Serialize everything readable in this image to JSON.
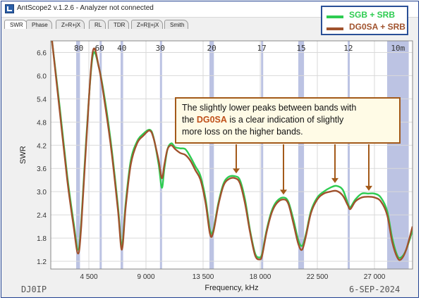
{
  "window": {
    "title": "AntScope2 v.1.2.6 - Analyzer not connected",
    "icon": "antscope-app-icon"
  },
  "tabs": [
    {
      "label": "SWR",
      "active": true
    },
    {
      "label": "Phase",
      "active": false
    },
    {
      "label": "Z=R+jX",
      "active": false
    },
    {
      "label": "RL",
      "active": false
    },
    {
      "label": "TDR",
      "active": false
    },
    {
      "label": "Z=R||+jX",
      "active": false
    },
    {
      "label": "Smith",
      "active": false
    }
  ],
  "legend": {
    "items": [
      {
        "label": "SGB + SRB",
        "color": "#2ecc51"
      },
      {
        "label": "DG0SA + SRB",
        "color": "#a0522d"
      }
    ]
  },
  "annotation": {
    "line1": "The slightly lower peaks between bands with",
    "line2_pre": "the ",
    "callsign": "DG0SA",
    "line2_post": " is a clear indication of slightly",
    "line3": "more loss on the higher bands."
  },
  "corner": {
    "left": "DJ0IP",
    "right": "6-SEP-2024"
  },
  "chart_data": {
    "type": "line",
    "xlabel": "Frequency, kHz",
    "ylabel": "SWR",
    "xlim": [
      1500,
      30000
    ],
    "ylim": [
      1.0,
      6.9
    ],
    "x_ticks": [
      "4 500",
      "9 000",
      "13 500",
      "18 000",
      "22 500",
      "27 000"
    ],
    "x_tick_values": [
      4500,
      9000,
      13500,
      18000,
      22500,
      27000
    ],
    "y_ticks": [
      "1.2",
      "1.8",
      "2.4",
      "3.0",
      "3.6",
      "4.2",
      "4.8",
      "5.4",
      "6.0",
      "6.6"
    ],
    "y_tick_values": [
      1.2,
      1.8,
      2.4,
      3.0,
      3.6,
      4.2,
      4.8,
      5.4,
      6.0,
      6.6
    ],
    "grid": true,
    "band_labels": [
      {
        "label": "80",
        "freq": 3700
      },
      {
        "label": "60",
        "freq": 5350
      },
      {
        "label": "40",
        "freq": 7100
      },
      {
        "label": "30",
        "freq": 10125
      },
      {
        "label": "20",
        "freq": 14175
      },
      {
        "label": "17",
        "freq": 18118
      },
      {
        "label": "15",
        "freq": 21225
      },
      {
        "label": "12",
        "freq": 24940
      },
      {
        "label": "10m",
        "freq": 28850
      }
    ],
    "bands": [
      [
        3500,
        3800
      ],
      [
        5350,
        5360
      ],
      [
        7000,
        7200
      ],
      [
        10100,
        10150
      ],
      [
        14000,
        14350
      ],
      [
        18068,
        18168
      ],
      [
        21000,
        21450
      ],
      [
        24890,
        24990
      ],
      [
        28000,
        29700
      ]
    ],
    "band_color": "#bcc3e3",
    "series": [
      {
        "name": "SGB + SRB",
        "color": "#2ecc51",
        "x": [
          1600,
          2200,
          2800,
          3300,
          3650,
          3900,
          4300,
          4800,
          5300,
          5800,
          6300,
          6800,
          7100,
          7400,
          7800,
          8300,
          8800,
          9300,
          9600,
          10000,
          10250,
          10450,
          10700,
          11000,
          11300,
          11700,
          12100,
          12500,
          12900,
          13300,
          13700,
          14050,
          14300,
          14700,
          15100,
          15500,
          16000,
          16400,
          16800,
          17200,
          17600,
          17950,
          18150,
          18500,
          18900,
          19300,
          19800,
          20200,
          20600,
          21000,
          21300,
          21600,
          22000,
          22500,
          23000,
          23500,
          24000,
          24500,
          24900,
          25100,
          25500,
          26000,
          26500,
          27000,
          27500,
          28000,
          28400,
          28800,
          29100,
          29500,
          30000
        ],
        "y": [
          6.9,
          5.2,
          3.4,
          2.2,
          1.5,
          2.2,
          4.4,
          6.5,
          6.2,
          5.3,
          4.1,
          2.6,
          1.6,
          2.7,
          3.8,
          4.3,
          4.5,
          4.6,
          4.4,
          3.7,
          3.1,
          3.6,
          4.1,
          4.25,
          4.15,
          4.12,
          4.1,
          3.9,
          3.65,
          3.4,
          2.8,
          2.0,
          2.0,
          2.7,
          3.2,
          3.38,
          3.4,
          3.3,
          2.8,
          2.0,
          1.4,
          1.3,
          1.4,
          2.0,
          2.5,
          2.75,
          2.85,
          2.75,
          2.3,
          1.75,
          1.6,
          1.9,
          2.5,
          2.85,
          3.0,
          3.1,
          3.15,
          3.05,
          2.7,
          2.6,
          2.8,
          2.95,
          2.95,
          2.95,
          2.85,
          2.5,
          1.8,
          1.35,
          1.3,
          1.5,
          2.0
        ]
      },
      {
        "name": "DG0SA + SRB",
        "color": "#a0522d",
        "x": [
          1600,
          2200,
          2800,
          3300,
          3650,
          3900,
          4300,
          4800,
          5300,
          5800,
          6300,
          6800,
          7100,
          7400,
          7800,
          8300,
          8800,
          9300,
          9600,
          10000,
          10250,
          10450,
          10700,
          11000,
          11300,
          11700,
          12100,
          12500,
          12900,
          13300,
          13700,
          14050,
          14300,
          14700,
          15100,
          15500,
          16000,
          16400,
          16800,
          17200,
          17600,
          17950,
          18150,
          18500,
          18900,
          19300,
          19800,
          20200,
          20600,
          21000,
          21300,
          21600,
          22000,
          22500,
          23000,
          23500,
          24000,
          24500,
          24900,
          25100,
          25500,
          26000,
          26500,
          27000,
          27500,
          28000,
          28400,
          28800,
          29100,
          29500,
          30000
        ],
        "y": [
          6.9,
          5.1,
          3.3,
          2.1,
          1.4,
          2.1,
          4.3,
          6.6,
          6.2,
          5.2,
          4.0,
          2.5,
          1.5,
          2.6,
          3.7,
          4.25,
          4.45,
          4.58,
          4.38,
          3.8,
          3.35,
          3.7,
          4.1,
          4.2,
          4.1,
          4.0,
          3.95,
          3.8,
          3.55,
          3.3,
          2.7,
          1.9,
          1.95,
          2.65,
          3.15,
          3.32,
          3.35,
          3.22,
          2.7,
          1.95,
          1.35,
          1.25,
          1.35,
          1.95,
          2.45,
          2.7,
          2.8,
          2.7,
          2.2,
          1.65,
          1.5,
          1.85,
          2.45,
          2.8,
          2.95,
          3.0,
          3.02,
          2.9,
          2.65,
          2.55,
          2.75,
          2.85,
          2.87,
          2.85,
          2.75,
          2.4,
          1.7,
          1.3,
          1.25,
          1.5,
          2.1
        ]
      }
    ],
    "arrow_targets": [
      {
        "freq": 15500,
        "swr": 3.4
      },
      {
        "freq": 20000,
        "swr": 2.85
      },
      {
        "freq": 23900,
        "swr": 3.15
      },
      {
        "freq": 26700,
        "swr": 2.95
      }
    ]
  }
}
